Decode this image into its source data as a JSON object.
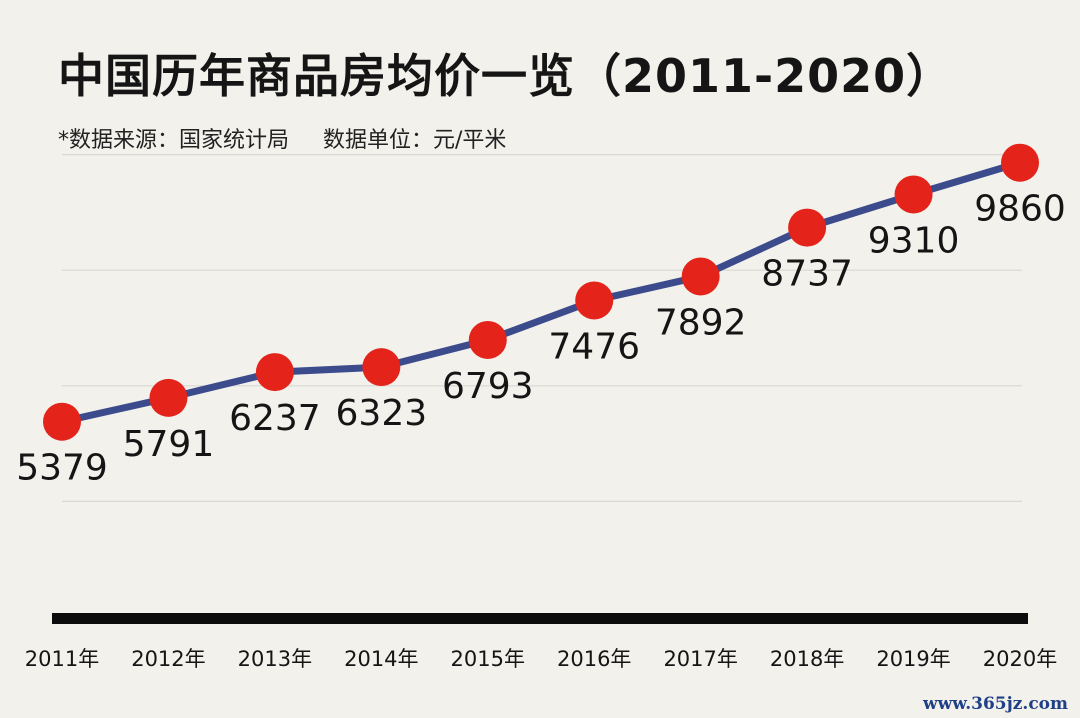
{
  "title": "中国历年商品房均价一览（2011-2020）",
  "subtitle": {
    "source": "*数据来源：国家统计局",
    "unit": "数据单位：元/平米"
  },
  "watermark": "www.365jz.com",
  "colors": {
    "background": "#f2f1ec",
    "line": "#3b4b8c",
    "marker": "#e4241b",
    "gridline": "#d9d8d3",
    "axis": "#0c0c0c",
    "text": "#151515"
  },
  "chart_data": {
    "type": "line",
    "title": "中国历年商品房均价一览（2011-2020）",
    "categories": [
      "2011年",
      "2012年",
      "2013年",
      "2014年",
      "2015年",
      "2016年",
      "2017年",
      "2018年",
      "2019年",
      "2020年"
    ],
    "values": [
      5379,
      5791,
      6237,
      6323,
      6793,
      7476,
      7892,
      8737,
      9310,
      9860
    ],
    "data_labels": [
      "5379",
      "5791",
      "6237",
      "6323",
      "6793",
      "7476",
      "7892",
      "8737",
      "9310",
      "9860"
    ],
    "xlabel": "",
    "ylabel": "",
    "ylim": [
      2000,
      10000
    ],
    "grid": true,
    "legend": "none"
  }
}
